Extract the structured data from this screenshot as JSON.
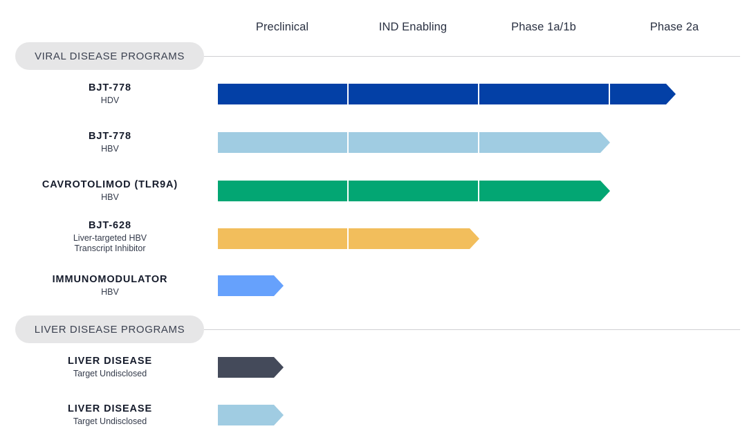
{
  "phases": [
    "Preclinical",
    "IND Enabling",
    "Phase 1a/1b",
    "Phase 2a"
  ],
  "sections": [
    {
      "title": "VIRAL DISEASE PROGRAMS",
      "programs": [
        {
          "name": "BJT-778",
          "subtitle": "HDV",
          "stage_progress": 3.5,
          "color": "#0340a6"
        },
        {
          "name": "BJT-778",
          "subtitle": "HBV",
          "stage_progress": 3.0,
          "color": "#a0cce2"
        },
        {
          "name": "CAVROTOLIMOD (TLR9A)",
          "subtitle": "HBV",
          "stage_progress": 3.0,
          "color": "#03a673"
        },
        {
          "name": "BJT-628",
          "subtitle": "Liver-targeted HBV\nTranscript Inhibitor",
          "stage_progress": 2.0,
          "color": "#f2be5c"
        },
        {
          "name": "IMMUNOMODULATOR",
          "subtitle": "HBV",
          "stage_progress": 0.5,
          "color": "#66a1fc"
        }
      ]
    },
    {
      "title": "LIVER DISEASE PROGRAMS",
      "programs": [
        {
          "name": "LIVER DISEASE",
          "subtitle": "Target Undisclosed",
          "stage_progress": 0.5,
          "color": "#444a5a"
        },
        {
          "name": "LIVER DISEASE",
          "subtitle": "Target Undisclosed",
          "stage_progress": 0.5,
          "color": "#a0cce2"
        }
      ]
    }
  ]
}
